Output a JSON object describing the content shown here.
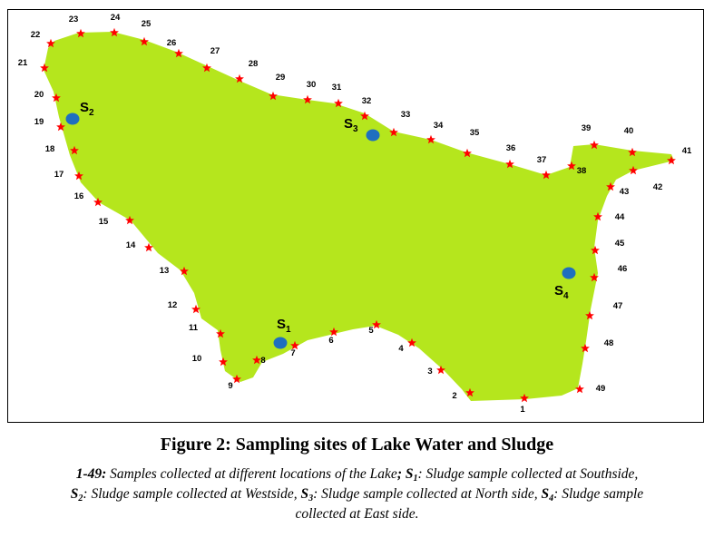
{
  "figure": {
    "title": "Figure 2: Sampling sites of Lake Water and Sludge",
    "caption": {
      "range_label": "1-49:",
      "range_text": "Samples collected at different locations of the Lake",
      "items": [
        {
          "symbol": "S",
          "sub": "1",
          "text": "Sludge sample collected at Southside"
        },
        {
          "symbol": "S",
          "sub": "2",
          "text": "Sludge sample collected at Westside"
        },
        {
          "symbol": "S",
          "sub": "3",
          "text": "Sludge sample collected at North side"
        },
        {
          "symbol": "S",
          "sub": "4",
          "text": "Sludge sample collected at East side."
        }
      ]
    }
  },
  "colors": {
    "lake_fill": "#b5e61d",
    "star": "#ff0000",
    "sludge_marker": "#1f6fbf",
    "frame": "#000000"
  },
  "sampling_sites": [
    "1",
    "2",
    "3",
    "4",
    "5",
    "6",
    "7",
    "8",
    "9",
    "10",
    "11",
    "12",
    "13",
    "14",
    "15",
    "16",
    "17",
    "18",
    "19",
    "20",
    "21",
    "22",
    "23",
    "24",
    "25",
    "26",
    "27",
    "28",
    "29",
    "30",
    "31",
    "32",
    "33",
    "34",
    "35",
    "36",
    "37",
    "38",
    "39",
    "40",
    "41",
    "42",
    "43",
    "44",
    "45",
    "46",
    "47",
    "48",
    "49"
  ],
  "sludge_sites": [
    {
      "symbol": "S",
      "sub": "1"
    },
    {
      "symbol": "S",
      "sub": "2"
    },
    {
      "symbol": "S",
      "sub": "3"
    },
    {
      "symbol": "S",
      "sub": "4"
    }
  ]
}
